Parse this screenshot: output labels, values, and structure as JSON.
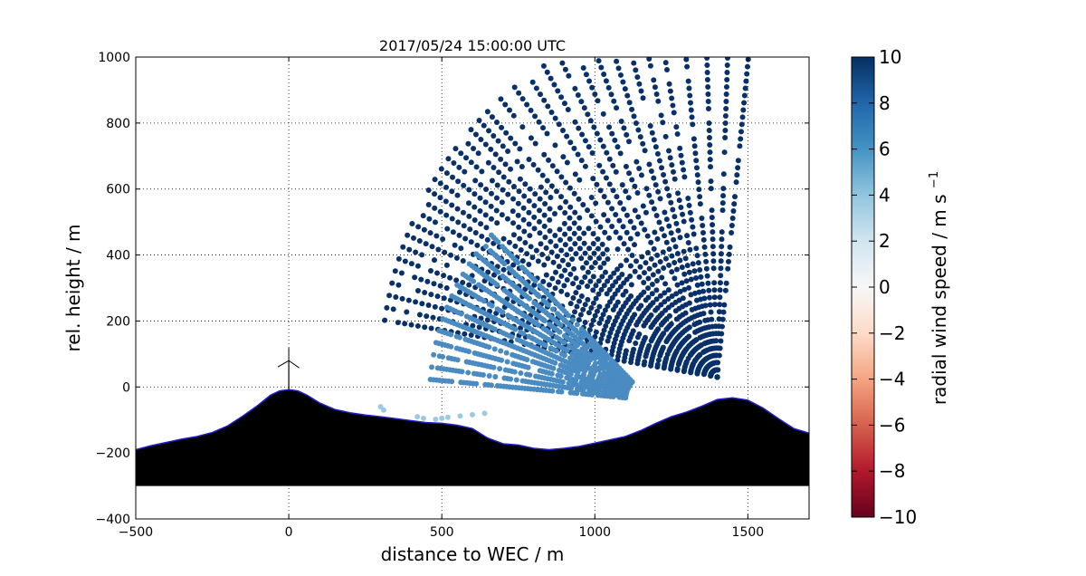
{
  "chart_data": {
    "type": "scatter",
    "title": "2017/05/24 15:00:00 UTC",
    "xlabel": "distance to WEC / m",
    "ylabel": "rel. height / m",
    "xlim": [
      -500,
      1700
    ],
    "ylim": [
      -400,
      1000
    ],
    "xticks": [
      -500,
      0,
      500,
      1000,
      1500
    ],
    "yticks": [
      -400,
      -200,
      0,
      200,
      400,
      600,
      800,
      1000
    ],
    "grid": true,
    "colorbar": {
      "label": "radial wind speed / m s",
      "label_superscript": "−1",
      "range": [
        -10,
        10
      ],
      "ticks": [
        10,
        8,
        6,
        4,
        2,
        0,
        -2,
        -4,
        -6,
        -8,
        -10
      ],
      "tick_labels": [
        "10",
        "8",
        "6",
        "4",
        "2",
        "0",
        "−2",
        "−4",
        "−6",
        "−8",
        "−10"
      ],
      "colormap": "RdBu"
    },
    "terrain": {
      "fill_color": "#000000",
      "outline_color": "#1f1fd0",
      "base": -300,
      "x": [
        -500,
        -450,
        -400,
        -350,
        -300,
        -250,
        -200,
        -150,
        -100,
        -60,
        -30,
        0,
        30,
        60,
        100,
        150,
        200,
        250,
        300,
        350,
        400,
        450,
        500,
        550,
        600,
        650,
        700,
        750,
        800,
        850,
        900,
        950,
        1000,
        1050,
        1100,
        1150,
        1200,
        1250,
        1300,
        1350,
        1400,
        1450,
        1500,
        1550,
        1600,
        1650,
        1700
      ],
      "y": [
        -190,
        -178,
        -168,
        -158,
        -150,
        -138,
        -118,
        -88,
        -55,
        -25,
        -12,
        -8,
        -12,
        -25,
        -48,
        -68,
        -78,
        -85,
        -90,
        -96,
        -102,
        -108,
        -110,
        -116,
        -126,
        -155,
        -172,
        -176,
        -186,
        -190,
        -186,
        -180,
        -170,
        -160,
        -150,
        -132,
        -110,
        -90,
        -76,
        -58,
        -38,
        -33,
        -40,
        -64,
        -96,
        -126,
        -140
      ]
    },
    "turbine": {
      "x": 0,
      "y": 80,
      "color": "#000000"
    },
    "series": [
      {
        "color": "#08306b",
        "value": 10,
        "scan_origin": [
          1400,
          30
        ],
        "elevations_deg": [
          9,
          11,
          13,
          15,
          17,
          19,
          21,
          23,
          25,
          27,
          29,
          31,
          33,
          35,
          37,
          39,
          41,
          43,
          45,
          47,
          50,
          53,
          56,
          59,
          62,
          65,
          68,
          71,
          74,
          77,
          80,
          84,
          88,
          92,
          96
        ],
        "range_max": 1100,
        "range_step": 22
      },
      {
        "color": "#4a8bc2",
        "value": 6,
        "scan_origin": [
          1180,
          -40
        ],
        "elevations_deg": [
          5,
          8,
          11,
          14,
          17,
          20,
          23,
          26,
          29,
          32,
          35,
          38,
          41,
          44
        ],
        "range_min": 80,
        "range_max": 720,
        "range_step": 10
      },
      {
        "color": "#9ecae1",
        "value": 3,
        "x": [
          300,
          310,
          420,
          440,
          480,
          500,
          520,
          560,
          600,
          640
        ],
        "y": [
          -60,
          -70,
          -90,
          -95,
          -98,
          -95,
          -92,
          -88,
          -84,
          -80
        ]
      }
    ]
  }
}
